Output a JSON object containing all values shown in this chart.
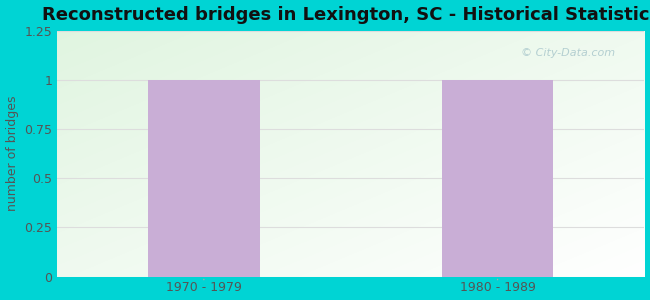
{
  "title": "Reconstructed bridges in Lexington, SC - Historical Statistics",
  "categories": [
    "1970 - 1979",
    "1980 - 1989"
  ],
  "values": [
    1,
    1
  ],
  "bar_color": "#c9aed6",
  "ylabel": "number of bridges",
  "ylabel_color": "#555555",
  "ylim": [
    0,
    1.25
  ],
  "yticks": [
    0,
    0.25,
    0.5,
    0.75,
    1,
    1.25
  ],
  "ytick_labels": [
    "0",
    "0.25",
    "0.5",
    "0.75",
    "1",
    "1.25"
  ],
  "background_outer": "#00d4d4",
  "grid_color": "#dddddd",
  "title_fontsize": 13,
  "ylabel_fontsize": 9,
  "tick_fontsize": 9,
  "bar_width": 0.38,
  "watermark": "© City-Data.com",
  "watermark_color": "#aac8cc"
}
